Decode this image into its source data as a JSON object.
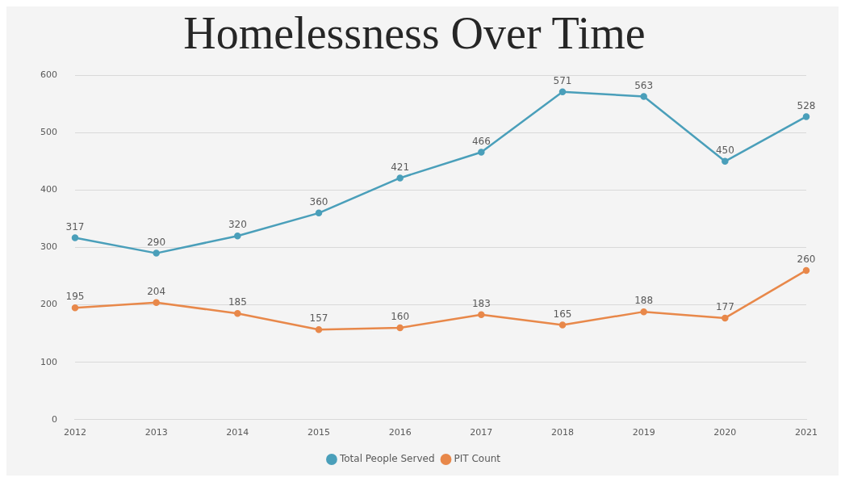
{
  "chart_data": {
    "type": "line",
    "title": "Homelessness Over Time",
    "categories": [
      "2012",
      "2013",
      "2014",
      "2015",
      "2016",
      "2017",
      "2018",
      "2019",
      "2020",
      "2021"
    ],
    "series": [
      {
        "name": "Total People Served",
        "color": "#4a9fba",
        "values": [
          317,
          290,
          320,
          360,
          421,
          466,
          571,
          563,
          450,
          528
        ]
      },
      {
        "name": "PIT Count",
        "color": "#e8884a",
        "values": [
          195,
          204,
          185,
          157,
          160,
          183,
          165,
          188,
          177,
          260
        ]
      }
    ],
    "ylim": [
      0,
      600
    ],
    "yticks": [
      0,
      100,
      200,
      300,
      400,
      500,
      600
    ],
    "grid": "y",
    "legend": "bottom",
    "marker": "circle",
    "line_style": "solid",
    "data_labels": true
  }
}
